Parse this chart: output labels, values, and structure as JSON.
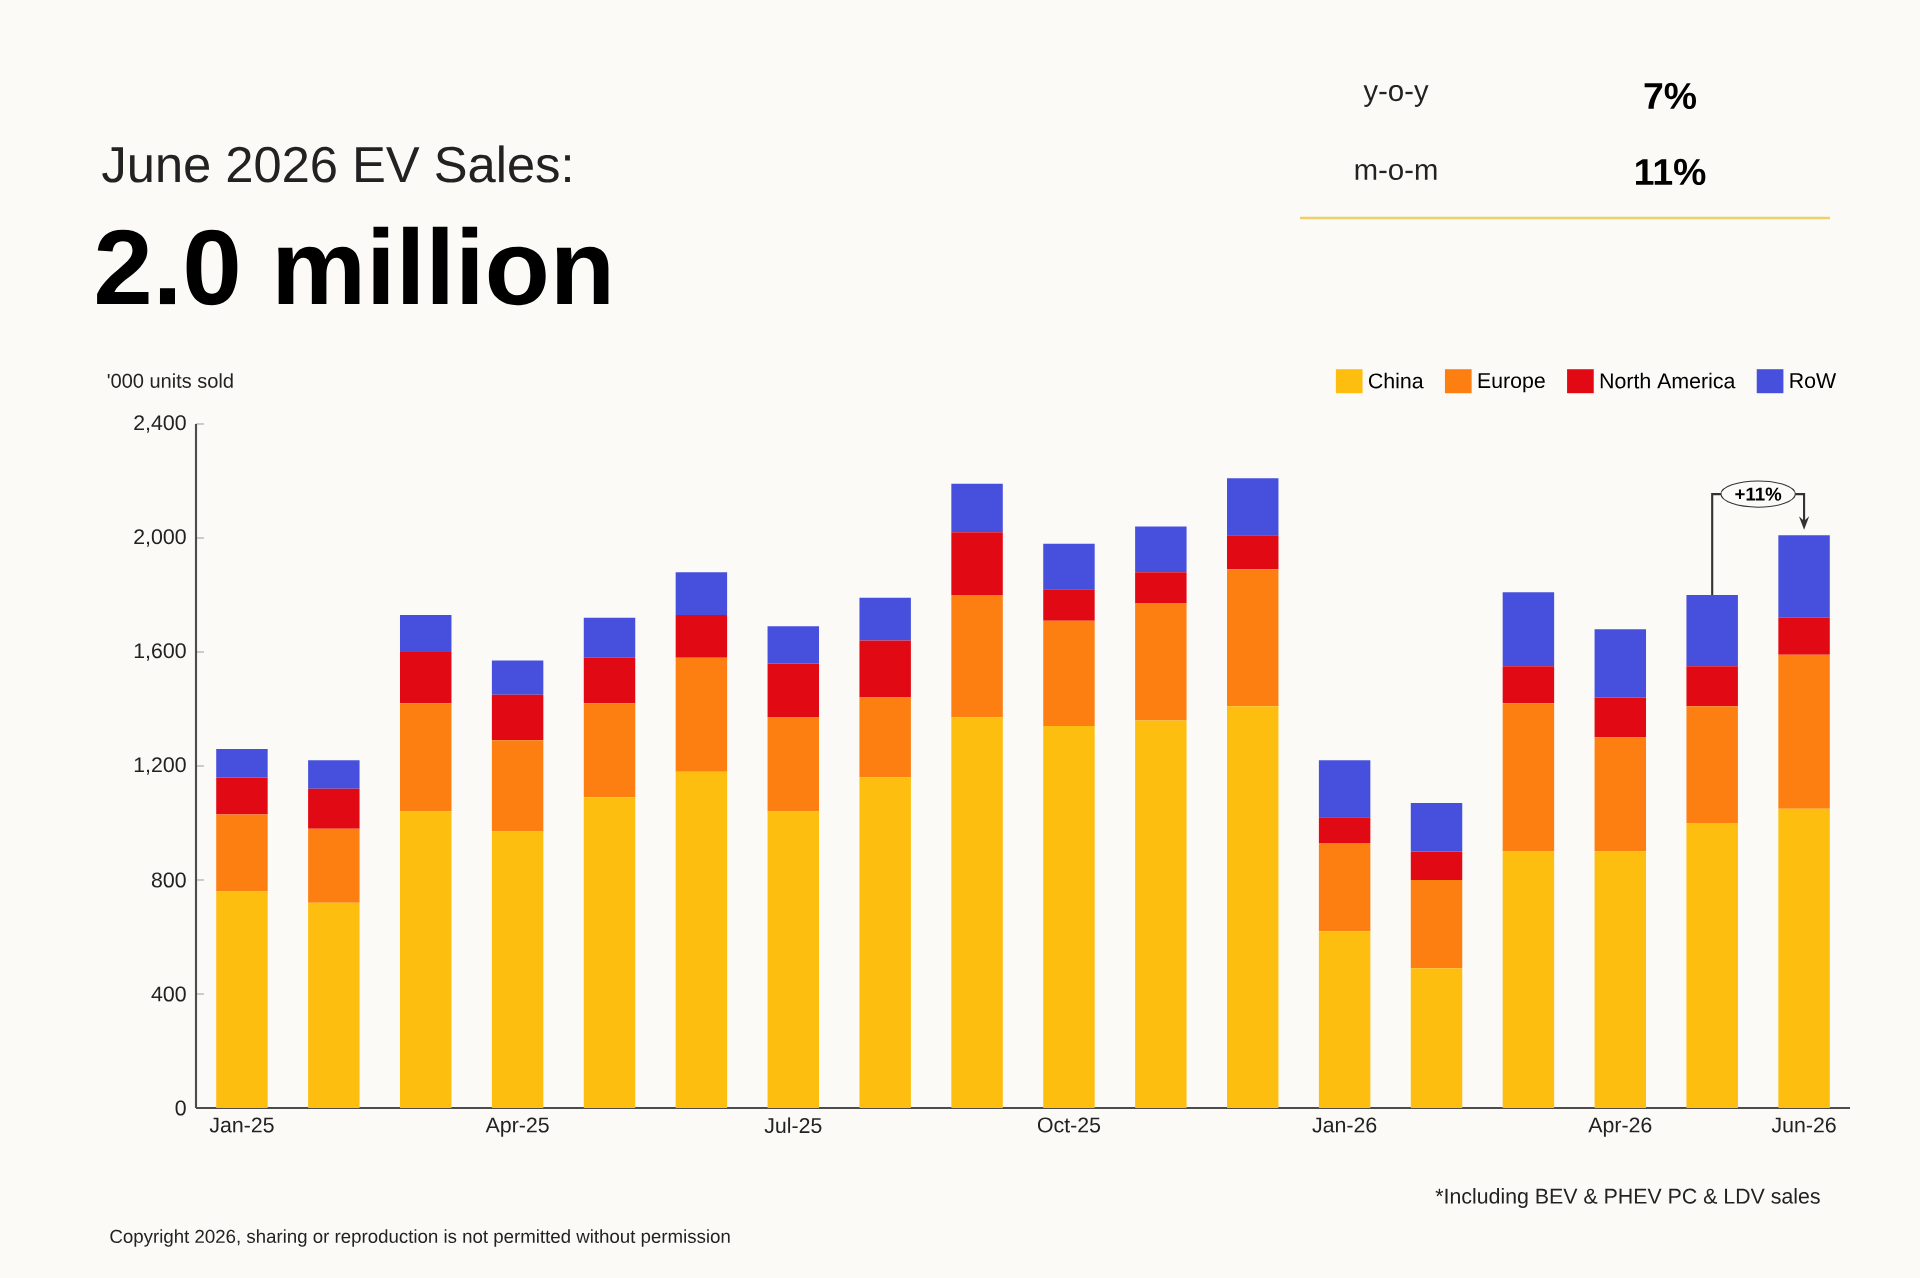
{
  "chart_data": {
    "type": "bar",
    "stacked": true,
    "title": "June 2026 EV Sales:",
    "subtitle": "2.0 million",
    "ylabel": "'000 units sold",
    "categories": [
      "Jan-25",
      null,
      null,
      "Apr-25",
      null,
      null,
      "Jul-25",
      null,
      null,
      "Oct-25",
      null,
      null,
      "Jan-26",
      null,
      null,
      "Apr-26",
      null,
      "Jun-26"
    ],
    "series": [
      {
        "name": "China",
        "color": "#fdbe0f",
        "values": [
          760,
          720,
          1040,
          970,
          1090,
          1180,
          1040,
          1160,
          1370,
          1340,
          1360,
          1410,
          620,
          490,
          900,
          900,
          1000,
          1050
        ]
      },
      {
        "name": "Europe",
        "color": "#fd7f12",
        "values": [
          270,
          260,
          380,
          320,
          330,
          400,
          330,
          280,
          430,
          370,
          410,
          480,
          310,
          310,
          520,
          400,
          410,
          540
        ]
      },
      {
        "name": "North America",
        "color": "#e10a14",
        "values": [
          130,
          140,
          180,
          160,
          160,
          150,
          190,
          200,
          220,
          110,
          110,
          120,
          90,
          100,
          130,
          140,
          140,
          130
        ]
      },
      {
        "name": "RoW",
        "color": "#4650dc",
        "values": [
          100,
          100,
          130,
          120,
          140,
          150,
          130,
          150,
          170,
          160,
          160,
          200,
          200,
          170,
          260,
          240,
          250,
          290
        ]
      }
    ],
    "ylim": [
      0,
      2400
    ],
    "yticks": [
      0,
      400,
      800,
      {
        "value": 1200,
        "label": "1,200"
      },
      {
        "value": 1600,
        "label": "1,600"
      },
      {
        "value": 2000,
        "label": "2,000"
      },
      {
        "value": 2400,
        "label": "2,400"
      }
    ],
    "legend": "top right",
    "annotations": [
      "y-o-y",
      "7%",
      "m-o-m",
      "11%",
      "+11%",
      "*Including BEV & PHEV PC & LDV sales",
      "Copyright 2026, sharing or reproduction is not permitted without permission"
    ]
  }
}
